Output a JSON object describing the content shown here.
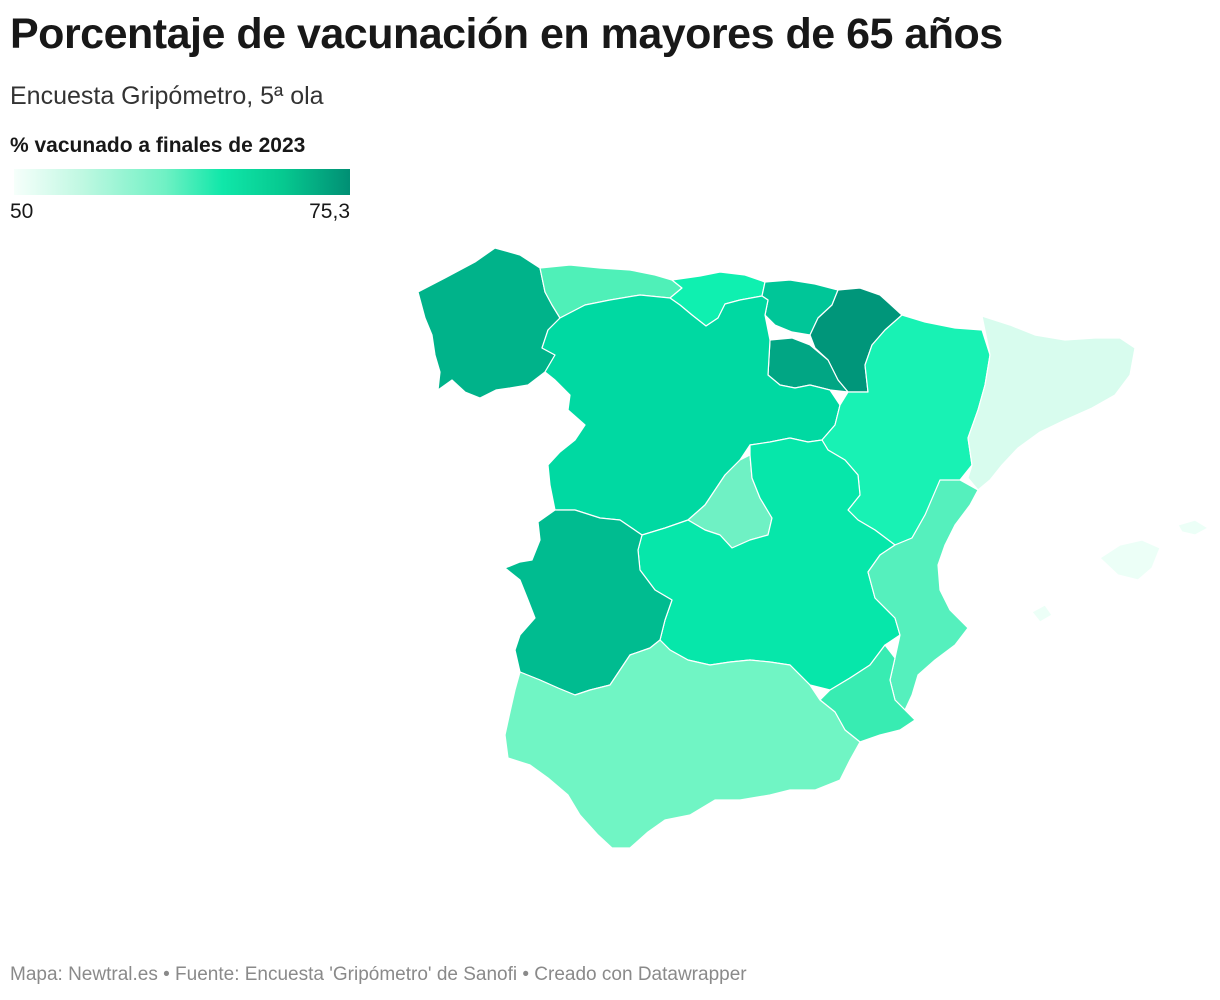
{
  "title": "Porcentaje de vacunación en mayores de 65 años",
  "subtitle": "Encuesta Gripómetro, 5ª ola",
  "legend": {
    "title": "% vacunado a finales de 2023",
    "min_label": "50",
    "max_label": "75,3",
    "colors": [
      "#f6fffb",
      "#c0f8e2",
      "#6ff1c4",
      "#10e7a9",
      "#06c990",
      "#018f74"
    ]
  },
  "regions": [
    {
      "name": "Galicia",
      "color": "#00b38a"
    },
    {
      "name": "Asturias",
      "color": "#4ff0b8"
    },
    {
      "name": "Cantabria",
      "color": "#0ff0b0"
    },
    {
      "name": "País Vasco",
      "color": "#00c698"
    },
    {
      "name": "Navarra",
      "color": "#00967a"
    },
    {
      "name": "La Rioja",
      "color": "#01a684"
    },
    {
      "name": "Castilla y León",
      "color": "#00d9a2"
    },
    {
      "name": "Aragón",
      "color": "#18f2b4"
    },
    {
      "name": "Cataluña",
      "color": "#d8fcee"
    },
    {
      "name": "Madrid",
      "color": "#6ff1c4"
    },
    {
      "name": "Castilla-La Mancha",
      "color": "#06e7aa"
    },
    {
      "name": "Extremadura",
      "color": "#00bc90"
    },
    {
      "name": "Comunidad Valenciana",
      "color": "#55f0bd"
    },
    {
      "name": "Región de Murcia",
      "color": "#38ecb2"
    },
    {
      "name": "Andalucía",
      "color": "#70f5c4"
    },
    {
      "name": "Islas Baleares",
      "color": "#ecfff7"
    }
  ],
  "footer": "Mapa: Newtral.es • Fuente: Encuesta 'Gripómetro' de Sanofi • Creado con Datawrapper"
}
